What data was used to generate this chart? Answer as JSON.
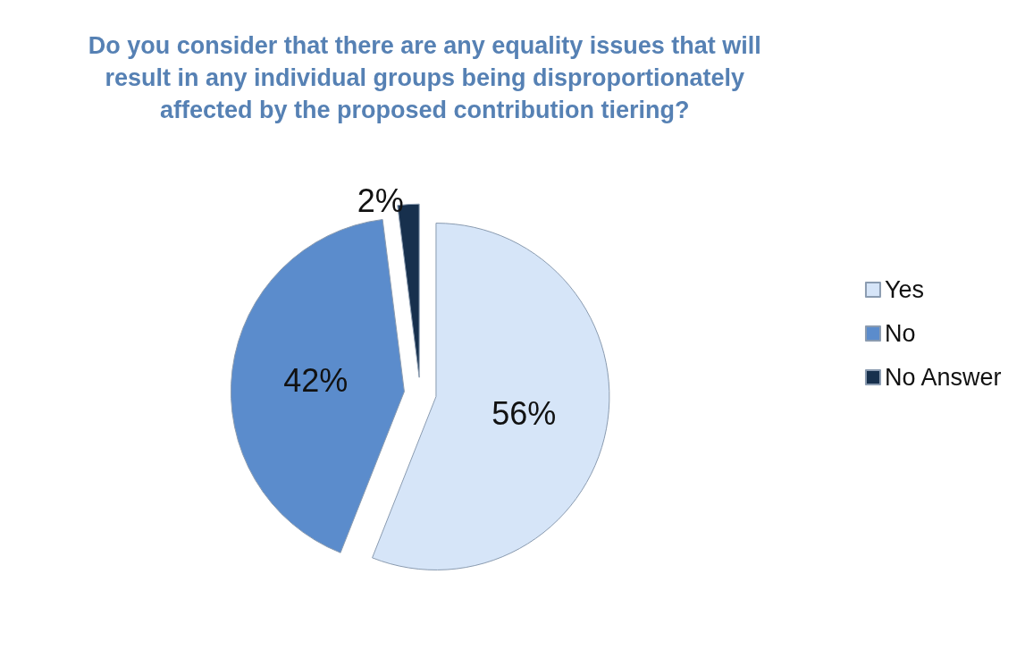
{
  "chart_data": {
    "type": "pie",
    "title": "Do you consider that there are any equality issues that will\nresult in any individual groups being disproportionately\naffected by the proposed contribution tiering?",
    "categories": [
      "Yes",
      "No",
      "No Answer"
    ],
    "values": [
      56,
      42,
      2
    ],
    "value_labels": [
      "56%",
      "42%",
      "2%"
    ],
    "colors": [
      "#d6e5f8",
      "#5b8ccc",
      "#17304d"
    ],
    "legend": "right"
  }
}
